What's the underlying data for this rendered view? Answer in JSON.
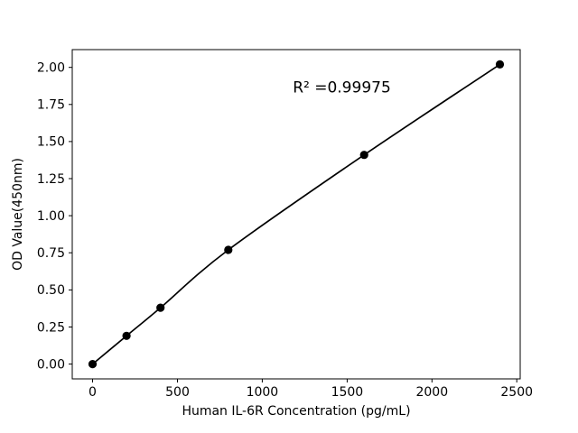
{
  "chart_data": {
    "type": "scatter",
    "title": "",
    "xlabel": "Human IL-6R Concentration (pg/mL)",
    "ylabel": "OD Value(450nm)",
    "annotation": "R² =0.99975",
    "annotation_xy": [
      1180,
      1.83
    ],
    "x": [
      0,
      200,
      400,
      800,
      1600,
      2400
    ],
    "y": [
      0.0,
      0.19,
      0.38,
      0.77,
      1.41,
      2.02
    ],
    "fit_curve": true,
    "xlim": [
      -120,
      2520
    ],
    "ylim": [
      -0.1,
      2.12
    ],
    "xticks": [
      0,
      500,
      1000,
      1500,
      2000,
      2500
    ],
    "xtick_labels": [
      "0",
      "500",
      "1000",
      "1500",
      "2000",
      "2500"
    ],
    "yticks": [
      0.0,
      0.25,
      0.5,
      0.75,
      1.0,
      1.25,
      1.5,
      1.75,
      2.0
    ],
    "ytick_labels": [
      "0.00",
      "0.25",
      "0.50",
      "0.75",
      "1.00",
      "1.25",
      "1.50",
      "1.75",
      "2.00"
    ],
    "grid": false,
    "legend": false,
    "marker_color": "#000000",
    "line_color": "#000000",
    "background": "#ffffff"
  }
}
